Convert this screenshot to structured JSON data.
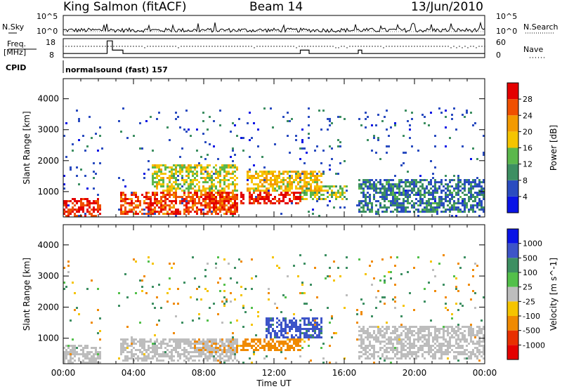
{
  "header": {
    "station": "King Salmon (fitACF)",
    "beam": "Beam 14",
    "date": "13/Jun/2010"
  },
  "top_panels": {
    "nsky_label": "N.Sky",
    "nsky_ticks": [
      "10^5",
      "10^0"
    ],
    "nsearch_label": "N.Search",
    "nsearch_ticks": [
      "10^5",
      "10^0"
    ],
    "freq_label": "Freq.",
    "freq_unit": "[MHz]",
    "freq_ticks": [
      "18",
      "8"
    ],
    "nave_label": "Nave",
    "nave_ticks": [
      "60",
      "0"
    ],
    "cpid_label": "CPID",
    "cpid_text": "normalsound (fast) 157"
  },
  "colors": {
    "scale": [
      "#0a14e6",
      "#2a4cc0",
      "#3d8f62",
      "#5bb84c",
      "#f5c400",
      "#f39a00",
      "#f05000",
      "#e40000"
    ],
    "velocity": [
      "#0a14e6",
      "#3d54c8",
      "#3d8f62",
      "#53c04a",
      "#bdbdbd",
      "#f5c400",
      "#f08a00",
      "#e83000",
      "#e40000"
    ]
  },
  "chart_data": [
    {
      "type": "heatmap",
      "panel": "power",
      "xlabel": "",
      "ylabel": "Slant Range [km]",
      "yticks": [
        "1000",
        "2000",
        "3000",
        "4000"
      ],
      "ylim": [
        180,
        4650
      ],
      "xlim": [
        0,
        24
      ],
      "colorbar": {
        "label": "Power [dB]",
        "ticks": [
          "4",
          "8",
          "12",
          "16",
          "20",
          "24",
          "28"
        ],
        "range": [
          0,
          30
        ]
      },
      "regions": [
        {
          "x": [
            0,
            2.2
          ],
          "y": [
            200,
            800
          ],
          "value": 27
        },
        {
          "x": [
            3.2,
            10
          ],
          "y": [
            250,
            1000
          ],
          "value": 25
        },
        {
          "x": [
            8,
            9.9
          ],
          "y": [
            400,
            1000
          ],
          "value": 28
        },
        {
          "x": [
            10.1,
            13.5
          ],
          "y": [
            600,
            1000
          ],
          "value": 28
        },
        {
          "x": [
            5,
            10
          ],
          "y": [
            1000,
            1900
          ],
          "value": 16
        },
        {
          "x": [
            10.5,
            14.8
          ],
          "y": [
            1000,
            1700
          ],
          "value": 18
        },
        {
          "x": [
            13.5,
            16.2
          ],
          "y": [
            700,
            1200
          ],
          "value": 14
        },
        {
          "x": [
            16.8,
            24
          ],
          "y": [
            300,
            1400
          ],
          "value": 8
        }
      ]
    },
    {
      "type": "heatmap",
      "panel": "velocity",
      "xlabel": "Time UT",
      "ylabel": "Slant Range [km]",
      "xticks": [
        "00:00",
        "04:00",
        "08:00",
        "12:00",
        "16:00",
        "20:00",
        "00:00"
      ],
      "yticks": [
        "1000",
        "2000",
        "3000",
        "4000"
      ],
      "ylim": [
        180,
        4650
      ],
      "xlim": [
        0,
        24
      ],
      "colorbar": {
        "label": "Velocity [m s^-1]",
        "ticks": [
          "1000",
          "500",
          "100",
          "25",
          "-25",
          "-100",
          "-500",
          "-1000"
        ],
        "range": [
          -1200,
          1200
        ]
      },
      "regions": [
        {
          "x": [
            0,
            2.2
          ],
          "y": [
            200,
            800
          ],
          "value": 0
        },
        {
          "x": [
            3.2,
            10
          ],
          "y": [
            250,
            1000
          ],
          "value": 0
        },
        {
          "x": [
            7.5,
            9.9
          ],
          "y": [
            500,
            1000
          ],
          "value": -150
        },
        {
          "x": [
            10.1,
            13.5
          ],
          "y": [
            600,
            1000
          ],
          "value": -150
        },
        {
          "x": [
            11.5,
            14.8
          ],
          "y": [
            1000,
            1700
          ],
          "value": 400
        },
        {
          "x": [
            16.8,
            24
          ],
          "y": [
            300,
            1400
          ],
          "value": 0
        }
      ]
    },
    {
      "type": "line",
      "panel": "frequency",
      "ylabel": "Freq. [MHz]",
      "ylim": [
        8,
        18
      ],
      "x": [
        0,
        2.5,
        2.5,
        2.8,
        2.8,
        3.4,
        3.4,
        13.5,
        13.5,
        14,
        14,
        16.8,
        16.8,
        17,
        17,
        24
      ],
      "values": [
        10,
        10,
        17.5,
        17.5,
        12,
        12,
        10,
        10,
        12,
        12,
        10,
        10,
        12,
        12,
        10,
        10
      ]
    }
  ]
}
